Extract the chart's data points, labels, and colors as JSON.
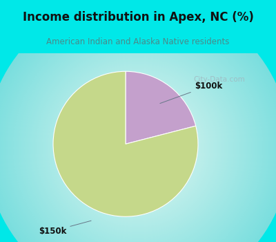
{
  "title": "Income distribution in Apex, NC (%)",
  "subtitle": "American Indian and Alaska Native residents",
  "title_color": "#111111",
  "subtitle_color": "#4a8a8a",
  "header_bg": "#00e8e8",
  "slices": [
    {
      "label": "$150k",
      "value": 79,
      "color": "#c5d88a"
    },
    {
      "label": "$100k",
      "value": 21,
      "color": "#c4a0cc"
    }
  ],
  "watermark": "City-Data.com",
  "watermark_color": "#a0b8c0",
  "startangle": 90,
  "chart_bg_left": "#b8e8d8",
  "chart_bg_center": "#e8f8f2",
  "pie_edge_color": "white",
  "pie_linewidth": 0.8
}
